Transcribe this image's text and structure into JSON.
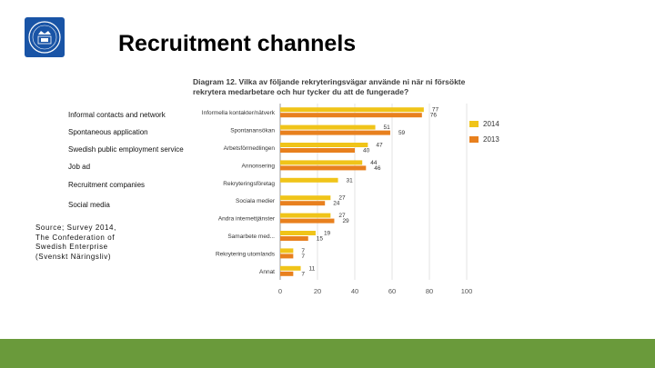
{
  "slide": {
    "title": "Recruitment channels",
    "english_labels": [
      "Informal contacts and network",
      "Spontaneous application",
      "Swedish public employment service",
      "Job ad",
      "Recruitment companies",
      "Social media"
    ],
    "source": "Source; Survey 2014,\nThe Confederation of\nSwedish Enterprise\n(Svenskt Näringsliv)",
    "footer_color": "#6a9a3b",
    "logo_color": "#1954a6"
  },
  "chart_data": {
    "type": "bar",
    "orientation": "horizontal",
    "title": "Diagram 12. Vilka av följande rekryteringsvägar använde ni när ni försökte rekrytera medarbetare och hur tycker du att de fungerade?",
    "categories": [
      "Informella kontakter/nätverk",
      "Spontanansökan",
      "Arbetsförmedlingen",
      "Annonsering",
      "Rekryteringsföretag",
      "Sociala medier",
      "Andra internettjänster",
      "Samarbete med...",
      "Rekrytering utomlands",
      "Annat"
    ],
    "series": [
      {
        "name": "2014",
        "color": "#f0c419",
        "values": [
          77,
          51,
          47,
          44,
          31,
          27,
          27,
          19,
          7,
          11
        ]
      },
      {
        "name": "2013",
        "color": "#e8801e",
        "values": [
          76,
          59,
          40,
          46,
          null,
          24,
          29,
          15,
          7,
          7
        ]
      }
    ],
    "xlim": [
      0,
      100
    ],
    "xticks": [
      0,
      20,
      40,
      60,
      80,
      100
    ],
    "xtick_labels": [
      "0",
      "20",
      "40",
      "60",
      "80",
      "100"
    ],
    "legend": "right",
    "grid": true
  }
}
